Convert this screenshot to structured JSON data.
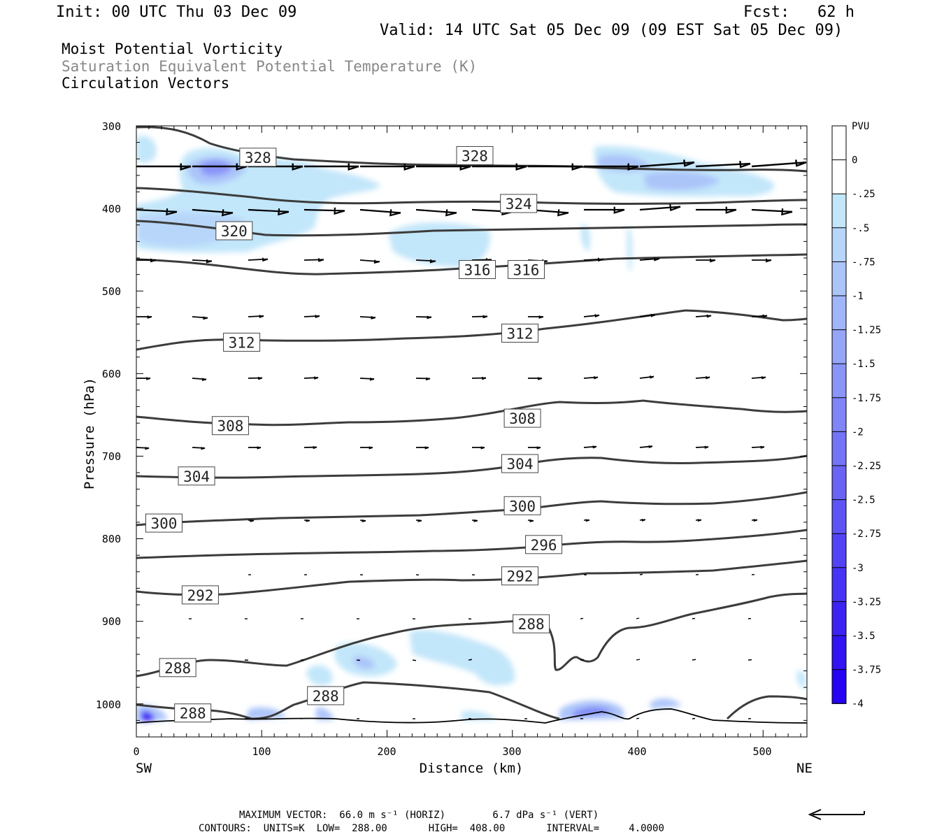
{
  "header": {
    "init": "Init: 00 UTC Thu 03 Dec 09",
    "fcst": "Fcst:   62 h",
    "valid": "Valid: 14 UTC Sat 05 Dec 09 (09 EST Sat 05 Dec 09)",
    "field1": "Moist Potential Vorticity",
    "field2": "Saturation Equivalent Potential Temperature (K)",
    "field3": "Circulation Vectors"
  },
  "footer": {
    "max_vector": "MAXIMUM VECTOR:  66.0 m s⁻¹ (HORIZ)        6.7 dPa s⁻¹ (VERT)",
    "contours": "CONTOURS:  UNITS=K  LOW=  288.00       HIGH=  408.00       INTERVAL=     4.0000"
  },
  "chart_data": {
    "type": "cross-section",
    "xlabel": "Distance (km)",
    "ylabel": "Pressure (hPa)",
    "xlim": [
      0,
      535
    ],
    "ylim": [
      300,
      1040
    ],
    "x_ticks": [
      "0",
      "100",
      "200",
      "300",
      "400",
      "500"
    ],
    "y_ticks": [
      "300",
      "400",
      "500",
      "600",
      "700",
      "800",
      "900",
      "1000"
    ],
    "x_endpoints": {
      "left": "SW",
      "right": "NE"
    },
    "colorbar": {
      "unit": "PVU",
      "levels": [
        "0",
        "-.25",
        "-.5",
        "-.75",
        "-1",
        "-1.25",
        "-1.5",
        "-1.75",
        "-2",
        "-2.25",
        "-2.5",
        "-2.75",
        "-3",
        "-3.25",
        "-3.5",
        "-3.75",
        "-4"
      ],
      "colors": [
        "#ffffff",
        "#ffffff",
        "#c2e6fa",
        "#b7d6fa",
        "#acc5f9",
        "#a1b5f9",
        "#95a5f8",
        "#8a95f8",
        "#7f85f7",
        "#7474f7",
        "#6964f6",
        "#5e54f6",
        "#5244f5",
        "#4734f5",
        "#3c23f4",
        "#3113f4",
        "#2603f3"
      ]
    },
    "contour_labels": [
      {
        "label": "328",
        "x": 97,
        "p": 338
      },
      {
        "label": "328",
        "x": 270,
        "p": 336
      },
      {
        "label": "324",
        "x": 305,
        "p": 394
      },
      {
        "label": "320",
        "x": 78,
        "p": 427
      },
      {
        "label": "316",
        "x": 272,
        "p": 474
      },
      {
        "label": "316",
        "x": 311,
        "p": 474
      },
      {
        "label": "312",
        "x": 84,
        "p": 562
      },
      {
        "label": "312",
        "x": 306,
        "p": 551
      },
      {
        "label": "308",
        "x": 75,
        "p": 663
      },
      {
        "label": "308",
        "x": 308,
        "p": 654
      },
      {
        "label": "304",
        "x": 48,
        "p": 724
      },
      {
        "label": "304",
        "x": 306,
        "p": 709
      },
      {
        "label": "300",
        "x": 22,
        "p": 781
      },
      {
        "label": "300",
        "x": 308,
        "p": 760
      },
      {
        "label": "296",
        "x": 325,
        "p": 807
      },
      {
        "label": "292",
        "x": 51,
        "p": 868
      },
      {
        "label": "292",
        "x": 306,
        "p": 845
      },
      {
        "label": "288",
        "x": 315,
        "p": 903
      },
      {
        "label": "288",
        "x": 33,
        "p": 956
      },
      {
        "label": "288",
        "x": 151,
        "p": 990
      },
      {
        "label": "288",
        "x": 45,
        "p": 1011
      }
    ]
  }
}
